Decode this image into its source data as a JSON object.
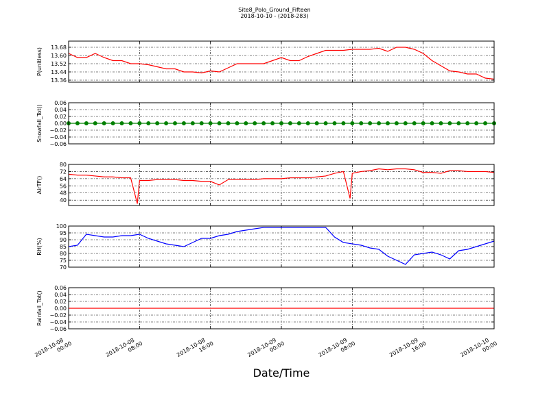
{
  "title": "Site8_Polo_Ground_Fifteen",
  "subtitle": "2018-10-10 - (2018-283)",
  "xlabel": "Date/Time",
  "chart_data": [
    {
      "type": "line",
      "ylabel": "P(unitless)",
      "color": "#ff0000",
      "x": [
        "2018-10-08 00:00",
        "2018-10-08 01:00",
        "2018-10-08 02:00",
        "2018-10-08 03:00",
        "2018-10-08 04:00",
        "2018-10-08 05:00",
        "2018-10-08 06:00",
        "2018-10-08 07:00",
        "2018-10-08 08:00",
        "2018-10-08 09:00",
        "2018-10-08 10:00",
        "2018-10-08 11:00",
        "2018-10-08 12:00",
        "2018-10-08 13:00",
        "2018-10-08 14:00",
        "2018-10-08 15:00",
        "2018-10-08 16:00",
        "2018-10-08 17:00",
        "2018-10-08 18:00",
        "2018-10-08 19:00",
        "2018-10-08 20:00",
        "2018-10-08 21:00",
        "2018-10-08 22:00",
        "2018-10-08 23:00",
        "2018-10-09 00:00",
        "2018-10-09 01:00",
        "2018-10-09 02:00",
        "2018-10-09 03:00",
        "2018-10-09 04:00",
        "2018-10-09 05:00",
        "2018-10-09 06:00",
        "2018-10-09 07:00",
        "2018-10-09 08:00",
        "2018-10-09 09:00",
        "2018-10-09 10:00",
        "2018-10-09 11:00",
        "2018-10-09 12:00",
        "2018-10-09 13:00",
        "2018-10-09 14:00",
        "2018-10-09 15:00",
        "2018-10-09 16:00",
        "2018-10-09 17:00",
        "2018-10-09 18:00",
        "2018-10-09 19:00",
        "2018-10-09 20:00",
        "2018-10-09 21:00",
        "2018-10-09 22:00",
        "2018-10-09 23:00",
        "2018-10-10 00:00"
      ],
      "values": [
        13.62,
        13.58,
        13.58,
        13.62,
        13.58,
        13.55,
        13.55,
        13.52,
        13.52,
        13.51,
        13.49,
        13.47,
        13.47,
        13.44,
        13.44,
        13.43,
        13.45,
        13.44,
        13.48,
        13.52,
        13.52,
        13.52,
        13.52,
        13.55,
        13.58,
        13.55,
        13.55,
        13.59,
        13.62,
        13.65,
        13.65,
        13.65,
        13.66,
        13.66,
        13.66,
        13.67,
        13.64,
        13.68,
        13.68,
        13.66,
        13.62,
        13.55,
        13.5,
        13.45,
        13.44,
        13.42,
        13.42,
        13.38,
        13.37
      ],
      "xlim": [
        "2018-10-08 00:00",
        "2018-10-10 00:00"
      ],
      "xticks": [
        "2018-10-08 00:00",
        "2018-10-08 08:00",
        "2018-10-08 16:00",
        "2018-10-09 00:00",
        "2018-10-09 08:00",
        "2018-10-09 16:00",
        "2018-10-10 00:00"
      ],
      "ylim": [
        13.34,
        13.74
      ],
      "yticks": [
        13.36,
        13.44,
        13.52,
        {
          "value": 13.6,
          "label": "13.60"
        },
        13.68
      ],
      "grid": true
    },
    {
      "type": "line",
      "ylabel": "Snowfall_Tot()",
      "color": "#008000",
      "marker": "o",
      "x": [
        "2018-10-08 00:00",
        "2018-10-08 01:00",
        "2018-10-08 02:00",
        "2018-10-08 03:00",
        "2018-10-08 04:00",
        "2018-10-08 05:00",
        "2018-10-08 06:00",
        "2018-10-08 07:00",
        "2018-10-08 08:00",
        "2018-10-08 09:00",
        "2018-10-08 10:00",
        "2018-10-08 11:00",
        "2018-10-08 12:00",
        "2018-10-08 13:00",
        "2018-10-08 14:00",
        "2018-10-08 15:00",
        "2018-10-08 16:00",
        "2018-10-08 17:00",
        "2018-10-08 18:00",
        "2018-10-08 19:00",
        "2018-10-08 20:00",
        "2018-10-08 21:00",
        "2018-10-08 22:00",
        "2018-10-08 23:00",
        "2018-10-09 00:00",
        "2018-10-09 01:00",
        "2018-10-09 02:00",
        "2018-10-09 03:00",
        "2018-10-09 04:00",
        "2018-10-09 05:00",
        "2018-10-09 06:00",
        "2018-10-09 07:00",
        "2018-10-09 08:00",
        "2018-10-09 09:00",
        "2018-10-09 10:00",
        "2018-10-09 11:00",
        "2018-10-09 12:00",
        "2018-10-09 13:00",
        "2018-10-09 14:00",
        "2018-10-09 15:00",
        "2018-10-09 16:00",
        "2018-10-09 17:00",
        "2018-10-09 18:00",
        "2018-10-09 19:00",
        "2018-10-09 20:00",
        "2018-10-09 21:00",
        "2018-10-09 22:00",
        "2018-10-09 23:00",
        "2018-10-10 00:00"
      ],
      "values": [
        0,
        0,
        0,
        0,
        0,
        0,
        0,
        0,
        0,
        0,
        0,
        0,
        0,
        0,
        0,
        0,
        0,
        0,
        0,
        0,
        0,
        0,
        0,
        0,
        0,
        0,
        0,
        0,
        0,
        0,
        0,
        0,
        0,
        0,
        0,
        0,
        0,
        0,
        0,
        0,
        0,
        0,
        0,
        0,
        0,
        0,
        0,
        0,
        0
      ],
      "xlim": [
        "2018-10-08 00:00",
        "2018-10-10 00:00"
      ],
      "xticks": [
        "2018-10-08 00:00",
        "2018-10-08 08:00",
        "2018-10-08 16:00",
        "2018-10-09 00:00",
        "2018-10-09 08:00",
        "2018-10-09 16:00",
        "2018-10-10 00:00"
      ],
      "ylim": [
        -0.06,
        0.06
      ],
      "yticks": [
        {
          "value": -0.06,
          "label": "−0.06"
        },
        {
          "value": -0.04,
          "label": "−0.04"
        },
        {
          "value": -0.02,
          "label": "−0.02"
        },
        {
          "value": 0,
          "label": "0.00"
        },
        0.02,
        0.04,
        0.06
      ],
      "grid": true
    },
    {
      "type": "line",
      "ylabel": "AirTF()",
      "color": "#ff0000",
      "x": [
        "2018-10-08 00:00",
        "2018-10-08 01:00",
        "2018-10-08 02:00",
        "2018-10-08 03:00",
        "2018-10-08 04:00",
        "2018-10-08 05:00",
        "2018-10-08 06:00",
        "2018-10-08 07:00",
        "2018-10-08 07:45",
        "2018-10-08 08:00",
        "2018-10-08 09:00",
        "2018-10-08 10:00",
        "2018-10-08 11:00",
        "2018-10-08 12:00",
        "2018-10-08 13:00",
        "2018-10-08 14:00",
        "2018-10-08 15:00",
        "2018-10-08 16:00",
        "2018-10-08 17:00",
        "2018-10-08 18:00",
        "2018-10-08 19:00",
        "2018-10-08 20:00",
        "2018-10-08 21:00",
        "2018-10-08 22:00",
        "2018-10-08 23:00",
        "2018-10-09 00:00",
        "2018-10-09 01:00",
        "2018-10-09 02:00",
        "2018-10-09 03:00",
        "2018-10-09 04:00",
        "2018-10-09 05:00",
        "2018-10-09 06:00",
        "2018-10-09 07:00",
        "2018-10-09 07:45",
        "2018-10-09 08:00",
        "2018-10-09 09:00",
        "2018-10-09 10:00",
        "2018-10-09 11:00",
        "2018-10-09 12:00",
        "2018-10-09 13:00",
        "2018-10-09 14:00",
        "2018-10-09 15:00",
        "2018-10-09 16:00",
        "2018-10-09 17:00",
        "2018-10-09 18:00",
        "2018-10-09 19:00",
        "2018-10-09 20:00",
        "2018-10-09 21:00",
        "2018-10-09 22:00",
        "2018-10-09 23:00",
        "2018-10-10 00:00"
      ],
      "values": [
        69,
        68,
        68,
        67,
        66,
        66,
        65,
        65,
        36,
        62,
        62,
        63,
        63,
        63,
        62,
        62,
        61,
        61,
        57,
        63,
        63,
        63,
        63,
        64,
        64,
        64,
        65,
        65,
        65,
        66,
        67,
        70,
        72,
        42,
        70,
        72,
        73,
        75,
        74,
        75,
        75,
        74,
        71,
        71,
        70,
        73,
        73,
        72,
        72,
        72,
        71
      ],
      "xlim": [
        "2018-10-08 00:00",
        "2018-10-10 00:00"
      ],
      "xticks": [
        "2018-10-08 00:00",
        "2018-10-08 08:00",
        "2018-10-08 16:00",
        "2018-10-09 00:00",
        "2018-10-09 08:00",
        "2018-10-09 16:00",
        "2018-10-10 00:00"
      ],
      "ylim": [
        34,
        80
      ],
      "yticks": [
        40,
        48,
        56,
        64,
        72,
        80
      ],
      "grid": true
    },
    {
      "type": "line",
      "ylabel": "RH(%)",
      "color": "#0000ff",
      "x": [
        "2018-10-08 00:00",
        "2018-10-08 01:00",
        "2018-10-08 02:00",
        "2018-10-08 03:00",
        "2018-10-08 04:00",
        "2018-10-08 05:00",
        "2018-10-08 06:00",
        "2018-10-08 07:00",
        "2018-10-08 08:00",
        "2018-10-08 09:00",
        "2018-10-08 10:00",
        "2018-10-08 11:00",
        "2018-10-08 12:00",
        "2018-10-08 13:00",
        "2018-10-08 14:00",
        "2018-10-08 15:00",
        "2018-10-08 16:00",
        "2018-10-08 17:00",
        "2018-10-08 18:00",
        "2018-10-08 19:00",
        "2018-10-08 20:00",
        "2018-10-08 21:00",
        "2018-10-08 22:00",
        "2018-10-08 23:00",
        "2018-10-09 00:00",
        "2018-10-09 01:00",
        "2018-10-09 02:00",
        "2018-10-09 03:00",
        "2018-10-09 04:00",
        "2018-10-09 05:00",
        "2018-10-09 06:00",
        "2018-10-09 07:00",
        "2018-10-09 08:00",
        "2018-10-09 09:00",
        "2018-10-09 10:00",
        "2018-10-09 11:00",
        "2018-10-09 12:00",
        "2018-10-09 13:00",
        "2018-10-09 14:00",
        "2018-10-09 15:00",
        "2018-10-09 16:00",
        "2018-10-09 17:00",
        "2018-10-09 18:00",
        "2018-10-09 19:00",
        "2018-10-09 20:00",
        "2018-10-09 21:00",
        "2018-10-09 22:00",
        "2018-10-09 23:00",
        "2018-10-10 00:00"
      ],
      "values": [
        85,
        86,
        94,
        93,
        92,
        92,
        93,
        93,
        94,
        91,
        89,
        87,
        86,
        85,
        88,
        91,
        91,
        93,
        94,
        96,
        97,
        98,
        99,
        99,
        99,
        99,
        99,
        99,
        99,
        99,
        92,
        88,
        87,
        86,
        84,
        83,
        78,
        75,
        72,
        79,
        80,
        81,
        79,
        76,
        82,
        83,
        85,
        87,
        89
      ],
      "xlim": [
        "2018-10-08 00:00",
        "2018-10-10 00:00"
      ],
      "xticks": [
        "2018-10-08 00:00",
        "2018-10-08 08:00",
        "2018-10-08 16:00",
        "2018-10-09 00:00",
        "2018-10-09 08:00",
        "2018-10-09 16:00",
        "2018-10-10 00:00"
      ],
      "ylim": [
        70,
        100
      ],
      "yticks": [
        70,
        75,
        80,
        85,
        90,
        95,
        100
      ],
      "grid": true
    },
    {
      "type": "line",
      "ylabel": "Rainfall_Tot()",
      "color": "#ff0000",
      "x": [
        "2018-10-08 00:00",
        "2018-10-08 01:00",
        "2018-10-08 02:00",
        "2018-10-08 03:00",
        "2018-10-08 04:00",
        "2018-10-08 05:00",
        "2018-10-08 06:00",
        "2018-10-08 07:00",
        "2018-10-08 08:00",
        "2018-10-08 09:00",
        "2018-10-08 10:00",
        "2018-10-08 11:00",
        "2018-10-08 12:00",
        "2018-10-08 13:00",
        "2018-10-08 14:00",
        "2018-10-08 15:00",
        "2018-10-08 16:00",
        "2018-10-08 17:00",
        "2018-10-08 18:00",
        "2018-10-08 19:00",
        "2018-10-08 20:00",
        "2018-10-08 21:00",
        "2018-10-08 22:00",
        "2018-10-08 23:00",
        "2018-10-09 00:00",
        "2018-10-09 01:00",
        "2018-10-09 02:00",
        "2018-10-09 03:00",
        "2018-10-09 04:00",
        "2018-10-09 05:00",
        "2018-10-09 06:00",
        "2018-10-09 07:00",
        "2018-10-09 08:00",
        "2018-10-09 09:00",
        "2018-10-09 10:00",
        "2018-10-09 11:00",
        "2018-10-09 12:00",
        "2018-10-09 13:00",
        "2018-10-09 14:00",
        "2018-10-09 15:00",
        "2018-10-09 16:00",
        "2018-10-09 17:00",
        "2018-10-09 18:00",
        "2018-10-09 19:00",
        "2018-10-09 20:00",
        "2018-10-09 21:00",
        "2018-10-09 22:00",
        "2018-10-09 23:00",
        "2018-10-10 00:00"
      ],
      "values": [
        0,
        0,
        0,
        0,
        0,
        0,
        0,
        0,
        0,
        0,
        0,
        0,
        0,
        0,
        0,
        0,
        0,
        0,
        0,
        0,
        0,
        0,
        0,
        0,
        0,
        0,
        0,
        0,
        0,
        0,
        0,
        0,
        0,
        0,
        0,
        0,
        0,
        0,
        0,
        0,
        0,
        0,
        0,
        0,
        0,
        0,
        0,
        0,
        0
      ],
      "xlim": [
        "2018-10-08 00:00",
        "2018-10-10 00:00"
      ],
      "xticks": [
        "2018-10-08 00:00",
        "2018-10-08 08:00",
        "2018-10-08 16:00",
        "2018-10-09 00:00",
        "2018-10-09 08:00",
        "2018-10-09 16:00",
        "2018-10-10 00:00"
      ],
      "ylim": [
        -0.06,
        0.06
      ],
      "yticks": [
        {
          "value": -0.06,
          "label": "−0.06"
        },
        {
          "value": -0.04,
          "label": "−0.04"
        },
        {
          "value": -0.02,
          "label": "−0.02"
        },
        {
          "value": 0,
          "label": "0.00"
        },
        0.02,
        0.04,
        0.06
      ],
      "grid": true
    }
  ]
}
